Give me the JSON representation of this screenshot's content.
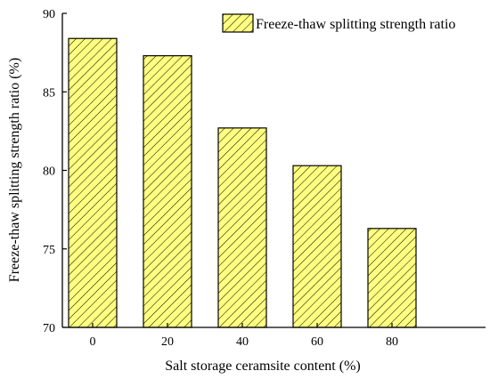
{
  "chart_data": {
    "type": "bar",
    "categories": [
      "0",
      "20",
      "40",
      "60",
      "80"
    ],
    "series": [
      {
        "name": "Freeze-thaw splitting strength ratio",
        "values": [
          88.4,
          87.3,
          82.7,
          80.3,
          76.3
        ]
      }
    ],
    "xlabel": "Salt storage ceramsite content (%)",
    "ylabel": "Freeze-thaw splitting strength ratio (%)",
    "ylim": [
      70,
      90
    ],
    "yticks": [
      "70",
      "75",
      "80",
      "85",
      "90"
    ],
    "legend_position": "top-right",
    "grid": false,
    "bar_fill": "#ffff80",
    "bar_pattern": "diagonal-hatch"
  }
}
